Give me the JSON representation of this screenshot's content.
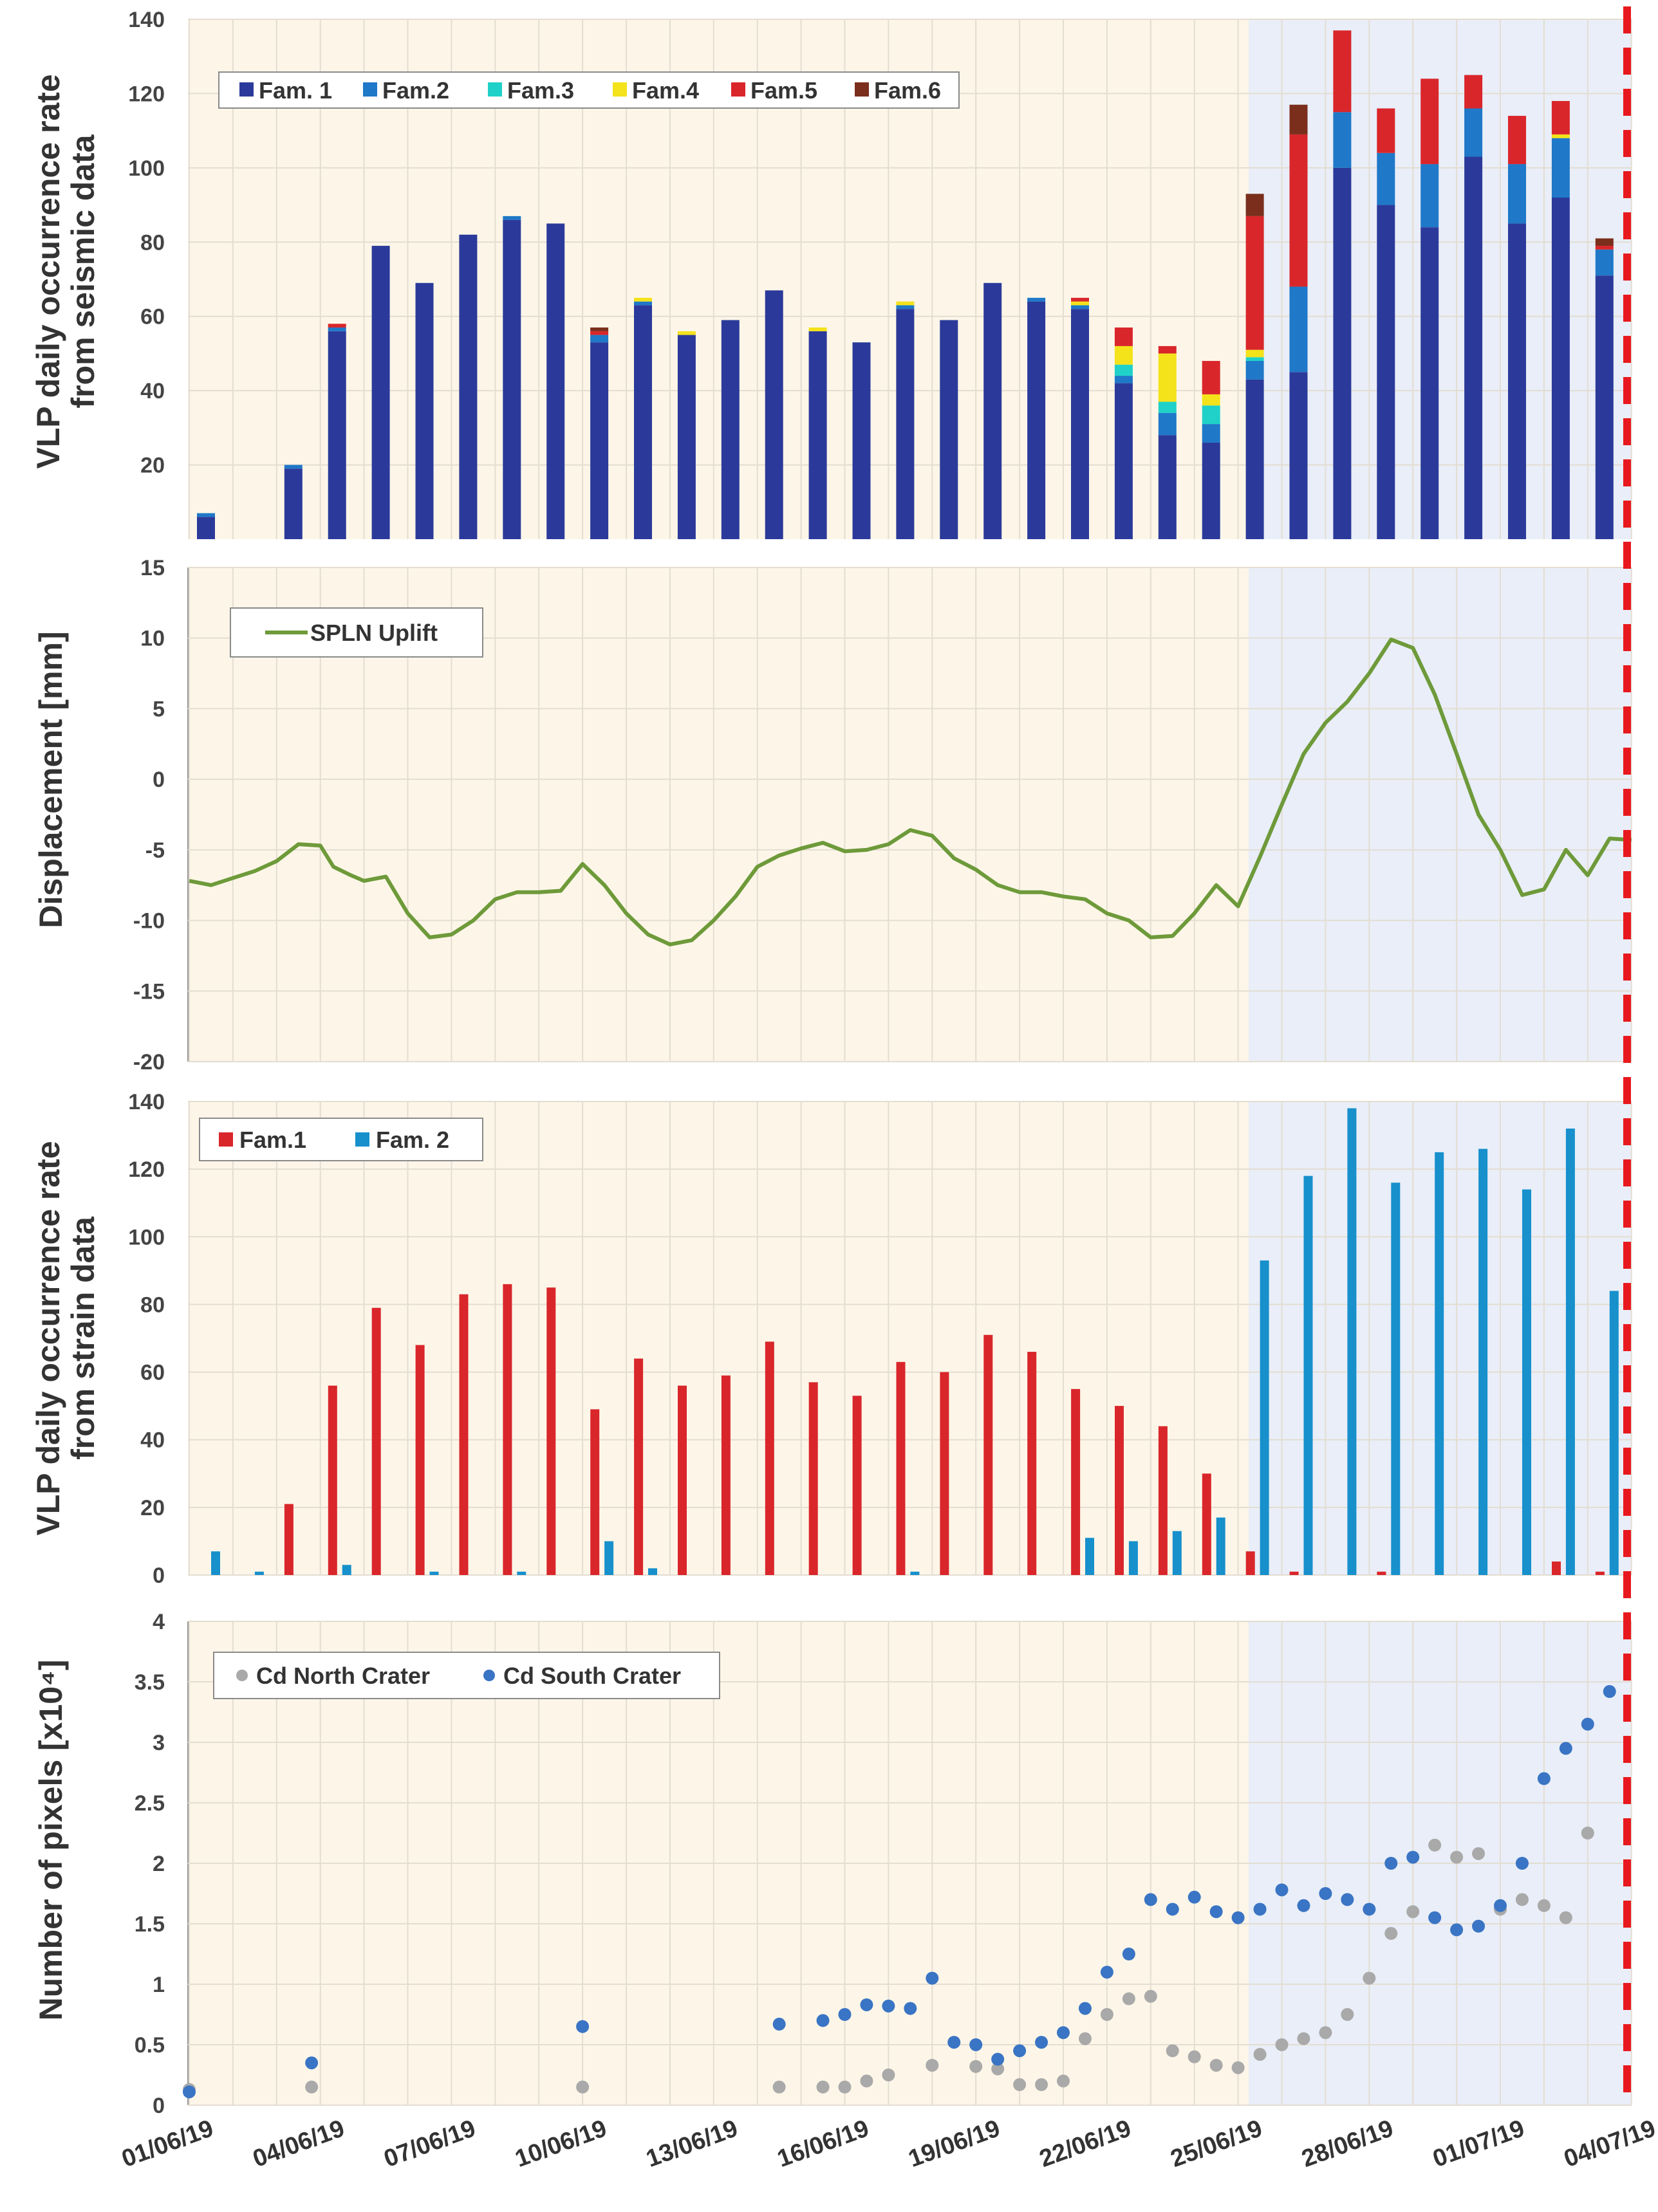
{
  "colors": {
    "phase1_bg": "#fdf6e8",
    "phase2_bg": "#e9eef8",
    "grid": "#e3ddd2",
    "fam1": "#2b3a9a",
    "fam2": "#1f78c8",
    "fam3": "#1fd1c8",
    "fam4": "#f4e21a",
    "fam5": "#d9262b",
    "fam6": "#7b2e1c",
    "strain_fam1": "#d9262b",
    "strain_fam2": "#1790cc",
    "uplift": "#6e9a3a",
    "north": "#a9a9a9",
    "south": "#3a74c4",
    "event": "#e8191e"
  },
  "x_axis": {
    "tick_labels": [
      "01/06/19",
      "04/06/19",
      "07/06/19",
      "10/06/19",
      "13/06/19",
      "16/06/19",
      "19/06/19",
      "22/06/19",
      "25/06/19",
      "28/06/19",
      "01/07/19",
      "04/07/19"
    ]
  },
  "chart_data": [
    {
      "type": "bar",
      "stacked": true,
      "ylabel_line1": "VLP daily occurrence rate",
      "ylabel_line2": "from seismic data",
      "ylim": [
        0,
        140
      ],
      "yticks": [
        "20",
        "40",
        "60",
        "80",
        "100",
        "120",
        "140"
      ],
      "legend": [
        "Fam. 1",
        "Fam.2",
        "Fam.3",
        "Fam.4",
        "Fam.5",
        "Fam.6"
      ],
      "days": [
        1,
        3,
        4,
        5,
        6,
        7,
        8,
        9,
        10,
        11,
        12,
        13,
        14,
        15,
        16,
        17,
        18,
        19,
        20,
        21,
        22,
        23,
        24,
        25,
        26,
        27,
        28,
        29,
        30,
        31,
        32,
        33
      ],
      "series": [
        {
          "name": "Fam. 1",
          "values": [
            6,
            19,
            56,
            79,
            69,
            82,
            86,
            85,
            53,
            63,
            55,
            59,
            67,
            56,
            53,
            62,
            59,
            69,
            64,
            62,
            42,
            28,
            26,
            43,
            45,
            100,
            90,
            84,
            103,
            85,
            92,
            71
          ]
        },
        {
          "name": "Fam.2",
          "values": [
            1,
            1,
            1,
            0,
            0,
            0,
            1,
            0,
            2,
            1,
            0,
            0,
            0,
            0,
            0,
            1,
            0,
            0,
            1,
            1,
            2,
            6,
            5,
            5,
            23,
            15,
            14,
            17,
            13,
            16,
            16,
            7
          ]
        },
        {
          "name": "Fam.3",
          "values": [
            0,
            0,
            0,
            0,
            0,
            0,
            0,
            0,
            0,
            0,
            0,
            0,
            0,
            0,
            0,
            0,
            0,
            0,
            0,
            0,
            3,
            3,
            5,
            1,
            0,
            0,
            0,
            0,
            0,
            0,
            0,
            0
          ]
        },
        {
          "name": "Fam.4",
          "values": [
            0,
            0,
            0,
            0,
            0,
            0,
            0,
            0,
            0,
            1,
            1,
            0,
            0,
            1,
            0,
            1,
            0,
            0,
            0,
            1,
            5,
            13,
            3,
            2,
            0,
            0,
            0,
            0,
            0,
            0,
            1,
            0
          ]
        },
        {
          "name": "Fam.5",
          "values": [
            0,
            0,
            1,
            0,
            0,
            0,
            0,
            0,
            1,
            0,
            0,
            0,
            0,
            0,
            0,
            0,
            0,
            0,
            0,
            1,
            5,
            2,
            9,
            36,
            41,
            22,
            12,
            23,
            9,
            13,
            9,
            1
          ]
        },
        {
          "name": "Fam.6",
          "values": [
            0,
            0,
            0,
            0,
            0,
            0,
            0,
            0,
            1,
            0,
            0,
            0,
            0,
            0,
            0,
            0,
            0,
            0,
            0,
            0,
            0,
            0,
            0,
            6,
            8,
            0,
            0,
            0,
            0,
            0,
            0,
            2
          ]
        }
      ]
    },
    {
      "type": "line",
      "ylabel": "Displacement [mm]",
      "ylim": [
        -20,
        15
      ],
      "yticks": [
        "-20",
        "-15",
        "-10",
        "-5",
        "0",
        "5",
        "10",
        "15"
      ],
      "legend": [
        "SPLN Uplift"
      ],
      "x": [
        1,
        1.5,
        2,
        2.5,
        3,
        3.5,
        4,
        4.3,
        4.7,
        5,
        5.5,
        6,
        6.5,
        7,
        7.5,
        8,
        8.5,
        9,
        9.5,
        10,
        10.5,
        11,
        11.5,
        12,
        12.5,
        13,
        13.5,
        14,
        14.5,
        15,
        15.5,
        16,
        16.5,
        17,
        17.5,
        18,
        18.5,
        19,
        19.5,
        20,
        20.5,
        21,
        21.5,
        22,
        22.5,
        23,
        23.5,
        24,
        24.5,
        25,
        25.5,
        26,
        26.5,
        27,
        27.5,
        28,
        28.5,
        29,
        29.5,
        30,
        30.5,
        31,
        31.5,
        32,
        32.5,
        33,
        33.5,
        34
      ],
      "values": [
        -7.2,
        -7.5,
        -7,
        -6.5,
        -5.8,
        -4.6,
        -4.7,
        -6.2,
        -6.8,
        -7.2,
        -6.9,
        -9.5,
        -11.2,
        -11,
        -10,
        -8.5,
        -8,
        -8,
        -7.9,
        -6,
        -7.5,
        -9.5,
        -11,
        -11.7,
        -11.4,
        -10,
        -8.3,
        -6.2,
        -5.4,
        -4.9,
        -4.5,
        -5.1,
        -5,
        -4.6,
        -3.6,
        -4,
        -5.6,
        -6.4,
        -7.5,
        -8,
        -8,
        -8.3,
        -8.5,
        -9.5,
        -10,
        -11.2,
        -11.1,
        -9.5,
        -7.5,
        -9,
        -5.5,
        -1.8,
        1.8,
        4,
        5.5,
        7.5,
        9.9,
        9.3,
        6,
        1.8,
        -2.5,
        -5,
        -8.2,
        -7.8,
        -5,
        -6.8,
        -4.2,
        -4.3
      ]
    },
    {
      "type": "bar",
      "ylabel_line1": "VLP daily occurrence rate",
      "ylabel_line2": "from strain data",
      "ylim": [
        0,
        140
      ],
      "yticks": [
        "0",
        "20",
        "40",
        "60",
        "80",
        "100",
        "120",
        "140"
      ],
      "legend": [
        "Fam.1",
        "Fam. 2"
      ],
      "days": [
        1,
        2,
        3,
        4,
        5,
        6,
        7,
        8,
        9,
        10,
        11,
        12,
        13,
        14,
        15,
        16,
        17,
        18,
        19,
        20,
        21,
        22,
        23,
        24,
        25,
        26,
        27,
        28,
        29,
        30,
        31,
        32,
        33
      ],
      "series": [
        {
          "name": "Fam.1",
          "values": [
            0,
            21,
            56,
            79,
            68,
            83,
            86,
            85,
            49,
            64,
            56,
            59,
            69,
            57,
            53,
            63,
            60,
            71,
            66,
            55,
            50,
            44,
            30,
            7,
            1,
            0,
            1,
            0,
            0,
            0,
            4,
            1,
            0
          ]
        },
        {
          "name": "Fam. 2",
          "values": [
            7,
            1,
            0,
            3,
            0,
            1,
            0,
            1,
            0,
            10,
            2,
            0,
            0,
            0,
            0,
            0,
            1,
            0,
            0,
            0,
            11,
            10,
            13,
            17,
            93,
            118,
            138,
            116,
            125,
            126,
            114,
            132,
            84
          ]
        }
      ]
    },
    {
      "type": "scatter",
      "ylabel": "Number of pixels [x10⁴]",
      "ylim": [
        0,
        4
      ],
      "yticks": [
        "0",
        "0.5",
        "1",
        "1.5",
        "2",
        "2.5",
        "3",
        "3.5",
        "4"
      ],
      "legend": [
        "Cd North Crater",
        "Cd South Crater"
      ],
      "series": [
        {
          "name": "Cd North Crater",
          "x": [
            1,
            3.8,
            10,
            14.5,
            15.5,
            16,
            16.5,
            17,
            18,
            19,
            19.5,
            20,
            20.5,
            21,
            21.5,
            22,
            22.5,
            23,
            23.5,
            24,
            24.5,
            25,
            25.5,
            26,
            26.5,
            27,
            27.5,
            28,
            28.5,
            29,
            29.5,
            30,
            30.5,
            31,
            31.5,
            32,
            32.5,
            33
          ],
          "values": [
            0.13,
            0.15,
            0.15,
            0.15,
            0.15,
            0.15,
            0.2,
            0.25,
            0.33,
            0.32,
            0.3,
            0.17,
            0.17,
            0.2,
            0.55,
            0.75,
            0.88,
            0.9,
            0.45,
            0.4,
            0.33,
            0.31,
            0.42,
            0.5,
            0.55,
            0.6,
            0.75,
            1.05,
            1.42,
            1.6,
            2.15,
            2.05,
            2.08,
            1.62,
            1.7,
            1.65,
            1.55,
            2.25
          ]
        },
        {
          "name": "Cd South Crater",
          "x": [
            1,
            3.8,
            10,
            14.5,
            15.5,
            16,
            16.5,
            17,
            17.5,
            18,
            18.5,
            19,
            19.5,
            20,
            20.5,
            21,
            21.5,
            22,
            22.5,
            23,
            23.5,
            24,
            24.5,
            25,
            25.5,
            26,
            26.5,
            27,
            27.5,
            28,
            28.5,
            29,
            29.5,
            30,
            30.5,
            31,
            31.5,
            32,
            32.5,
            33,
            33.5
          ],
          "values": [
            0.11,
            0.35,
            0.65,
            0.67,
            0.7,
            0.75,
            0.83,
            0.82,
            0.8,
            1.05,
            0.52,
            0.5,
            0.38,
            0.45,
            0.52,
            0.6,
            0.8,
            1.1,
            1.25,
            1.7,
            1.62,
            1.72,
            1.6,
            1.55,
            1.62,
            1.78,
            1.65,
            1.75,
            1.7,
            1.62,
            2.0,
            2.05,
            1.55,
            1.45,
            1.48,
            1.65,
            2.0,
            2.7,
            2.95,
            3.15,
            3.42
          ]
        }
      ]
    }
  ]
}
